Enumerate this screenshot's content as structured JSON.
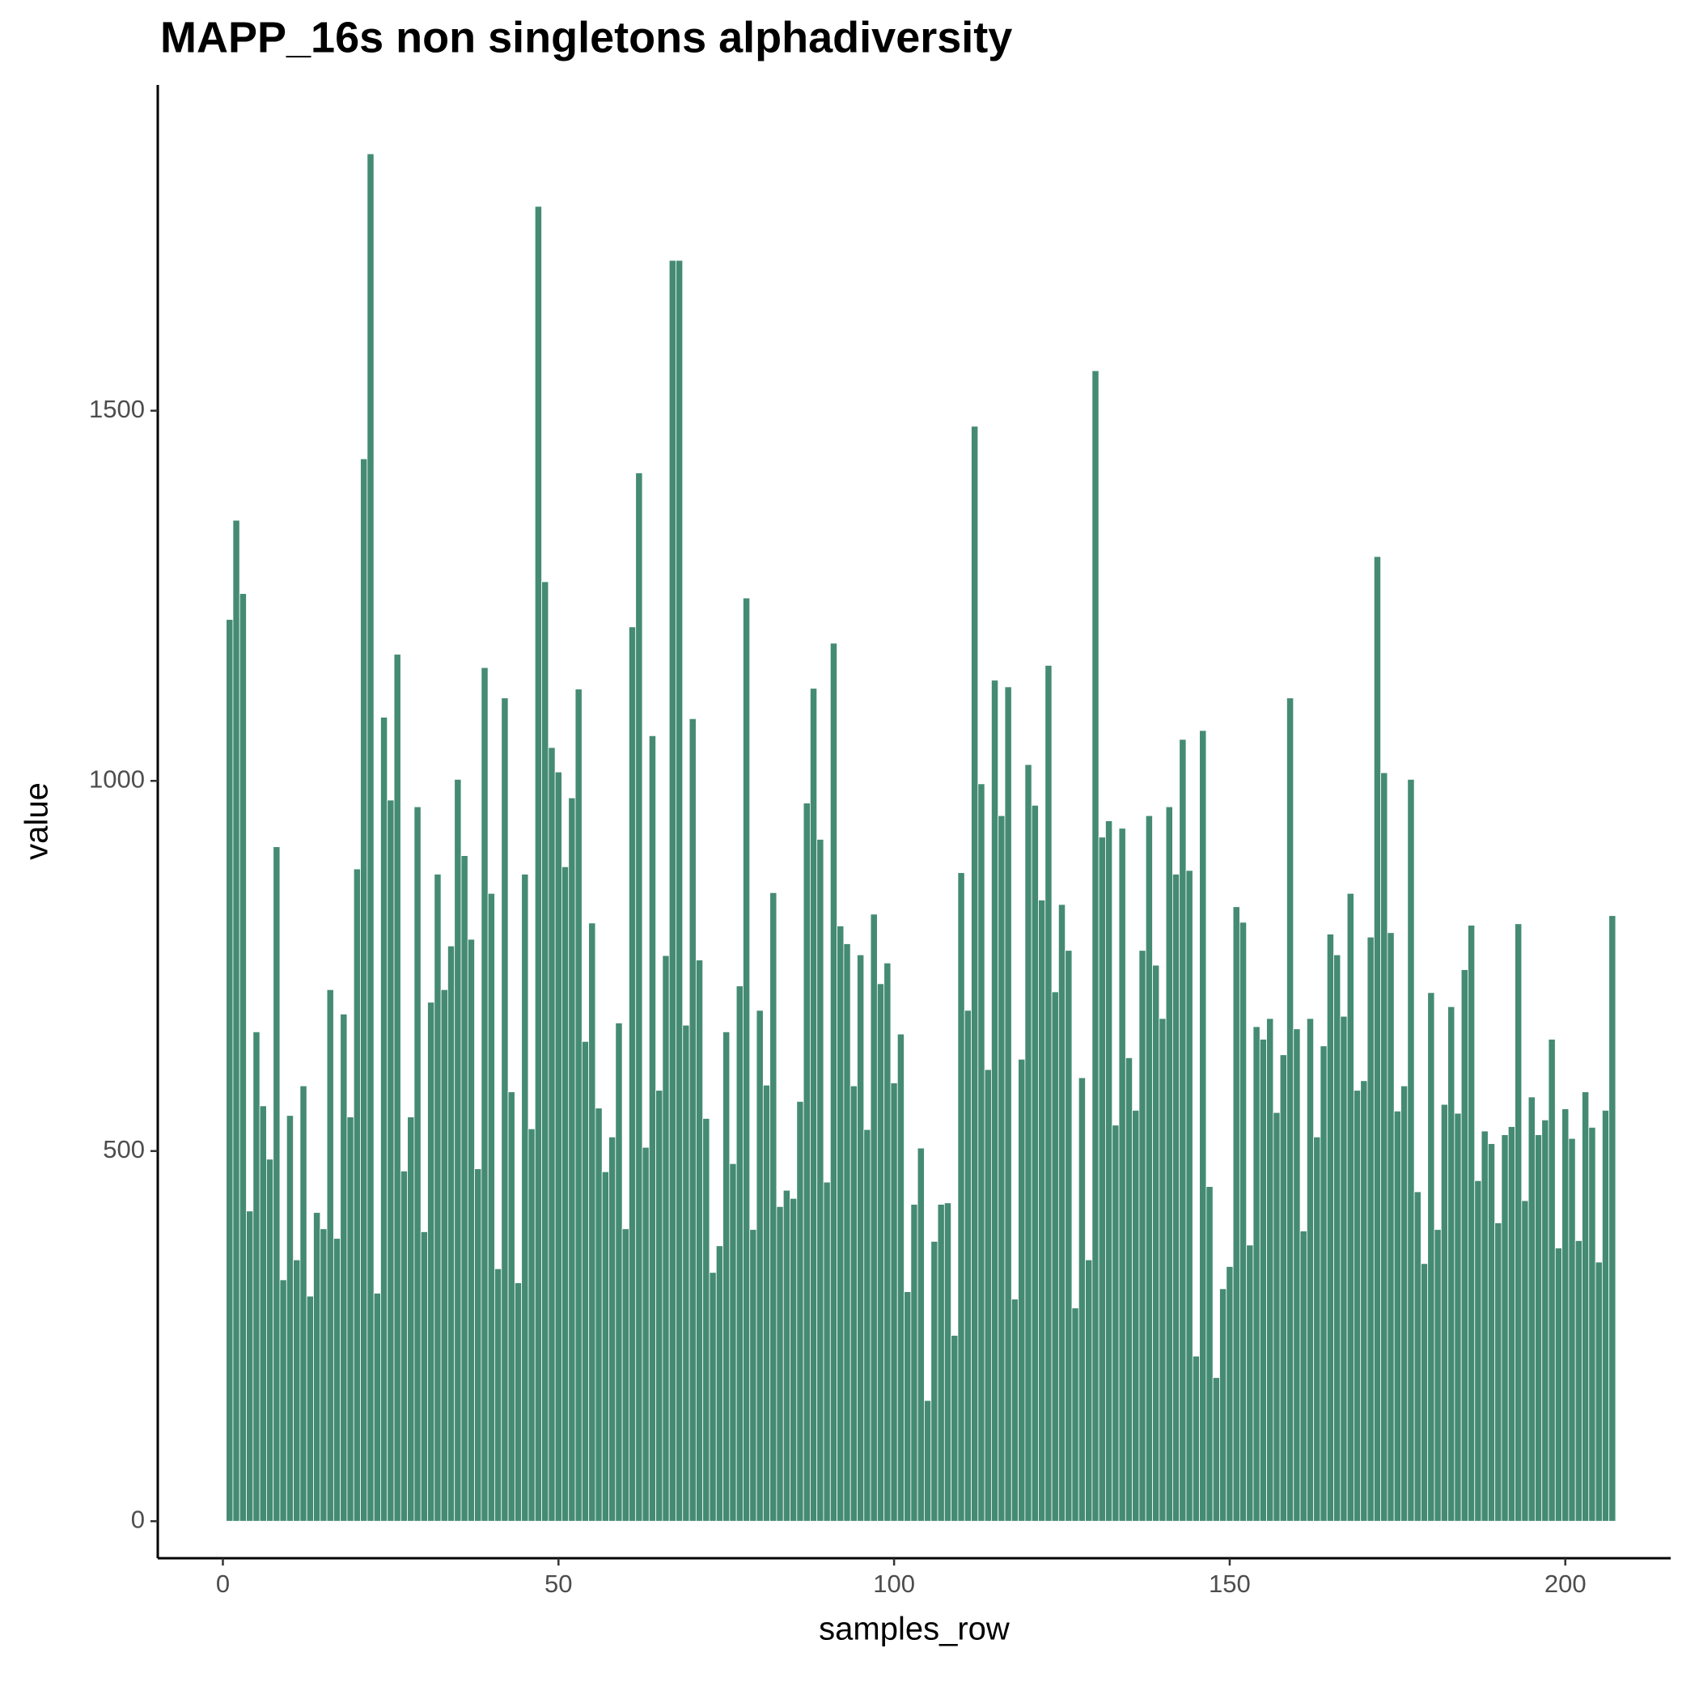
{
  "chart_data": {
    "type": "bar",
    "title": "MAPP_16s non singletons alphadiversity",
    "xlabel": "samples_row",
    "ylabel": "value",
    "color": "#458b74",
    "x": [
      1,
      2,
      3,
      4,
      5,
      6,
      7,
      8,
      9,
      10,
      11,
      12,
      13,
      14,
      15,
      16,
      17,
      18,
      19,
      20,
      21,
      22,
      23,
      24,
      25,
      26,
      27,
      28,
      29,
      30,
      31,
      32,
      33,
      34,
      35,
      36,
      37,
      38,
      39,
      40,
      41,
      42,
      43,
      44,
      45,
      46,
      47,
      48,
      49,
      50,
      51,
      52,
      53,
      54,
      55,
      56,
      57,
      58,
      59,
      60,
      61,
      62,
      63,
      64,
      65,
      66,
      67,
      68,
      69,
      70,
      71,
      72,
      73,
      74,
      75,
      76,
      77,
      78,
      79,
      80,
      81,
      82,
      83,
      84,
      85,
      86,
      87,
      88,
      89,
      90,
      91,
      92,
      93,
      94,
      95,
      96,
      97,
      98,
      99,
      100,
      101,
      102,
      103,
      104,
      105,
      106,
      107,
      108,
      109,
      110,
      111,
      112,
      113,
      114,
      115,
      116,
      117,
      118,
      119,
      120,
      121,
      122,
      123,
      124,
      125,
      126,
      127,
      128,
      129,
      130,
      131,
      132,
      133,
      134,
      135,
      136,
      137,
      138,
      139,
      140,
      141,
      142,
      143,
      144,
      145,
      146,
      147,
      148,
      149,
      150,
      151,
      152,
      153,
      154,
      155,
      156,
      157,
      158,
      159,
      160,
      161,
      162,
      163,
      164,
      165,
      166,
      167,
      168,
      169,
      170,
      171,
      172,
      173,
      174,
      175,
      176,
      177,
      178,
      179,
      180,
      181,
      182,
      183,
      184,
      185,
      186,
      187,
      188,
      189,
      190,
      191,
      192,
      193,
      194,
      195,
      196,
      197,
      198,
      199,
      200,
      201,
      202,
      203,
      204,
      205,
      206,
      207
    ],
    "values": [
      1218,
      1352,
      1253,
      419,
      661,
      561,
      489,
      911,
      326,
      548,
      353,
      588,
      304,
      417,
      395,
      718,
      382,
      685,
      546,
      881,
      1435,
      1847,
      308,
      1086,
      974,
      1171,
      473,
      546,
      965,
      391,
      701,
      874,
      718,
      777,
      1002,
      899,
      786,
      476,
      1153,
      848,
      341,
      1112,
      580,
      322,
      874,
      530,
      1776,
      1269,
      1045,
      1012,
      884,
      977,
      1124,
      648,
      808,
      558,
      472,
      519,
      673,
      395,
      1208,
      1416,
      505,
      1061,
      582,
      764,
      1703,
      1703,
      670,
      1084,
      758,
      544,
      336,
      372,
      661,
      483,
      723,
      1247,
      394,
      690,
      589,
      849,
      425,
      447,
      436,
      567,
      970,
      1125,
      921,
      458,
      1186,
      804,
      780,
      588,
      765,
      529,
      820,
      726,
      754,
      592,
      658,
      310,
      428,
      504,
      163,
      378,
      428,
      430,
      251,
      876,
      690,
      1479,
      996,
      610,
      1136,
      953,
      1127,
      300,
      624,
      1022,
      967,
      839,
      1156,
      715,
      833,
      771,
      288,
      599,
      353,
      1554,
      924,
      946,
      535,
      936,
      626,
      555,
      771,
      953,
      751,
      679,
      965,
      874,
      1056,
      879,
      223,
      1068,
      452,
      194,
      314,
      344,
      830,
      809,
      373,
      668,
      651,
      679,
      552,
      630,
      1112,
      665,
      392,
      679,
      519,
      642,
      793,
      765,
      682,
      848,
      582,
      595,
      789,
      1303,
      1011,
      795,
      554,
      588,
      1002,
      445,
      348,
      714,
      394,
      563,
      695,
      551,
      745,
      805,
      460,
      527,
      510,
      403,
      522,
      533,
      807,
      433,
      573,
      522,
      542,
      651,
      369,
      557,
      517,
      379,
      580,
      532,
      350,
      555,
      818
    ],
    "xlim": [
      -9.7,
      215.7
    ],
    "ylim": [
      -50,
      1940
    ],
    "xticks": [
      0,
      50,
      100,
      150,
      200
    ],
    "yticks": [
      0,
      500,
      1000,
      1500
    ],
    "grid": false
  }
}
